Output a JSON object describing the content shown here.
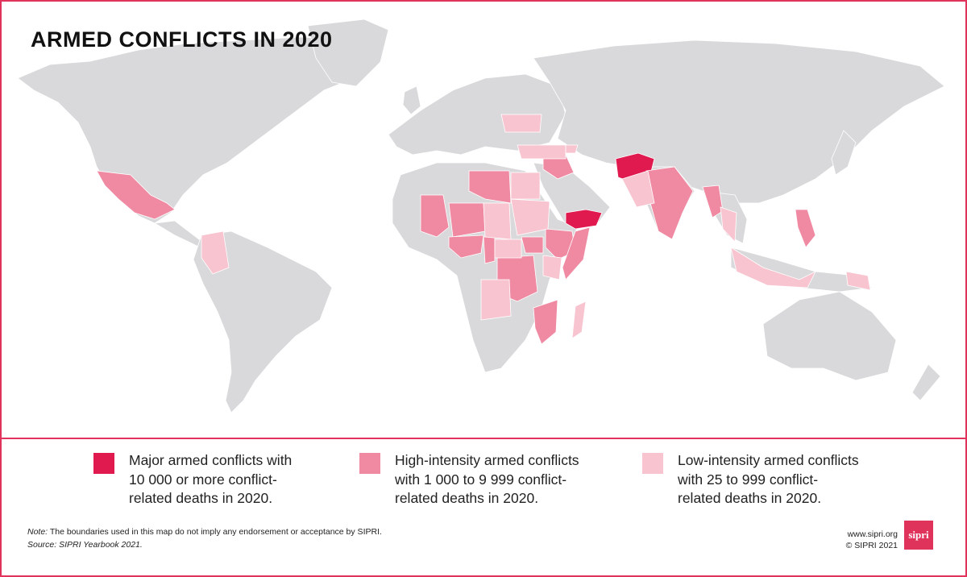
{
  "title": "ARMED CONFLICTS IN 2020",
  "colors": {
    "border": "#e0335b",
    "land": "#d9d9dc",
    "major": "#e0194f",
    "high": "#f08aa3",
    "low": "#f8c4d0"
  },
  "legend": [
    {
      "category": "major",
      "text": "Major armed conflicts with\n10 000 or more conflict-\nrelated deaths in 2020."
    },
    {
      "category": "high",
      "text": "High-intensity armed conflicts\nwith 1 000 to 9 999 conflict-\nrelated deaths in 2020."
    },
    {
      "category": "low",
      "text": "Low-intensity armed conflicts\nwith 25 to 999 conflict-\nrelated deaths in 2020."
    }
  ],
  "note": {
    "label": "Note:",
    "text": " The boundaries used in this map do not imply any endorsement or acceptance by SIPRI.",
    "source": "Source: SIPRI Yearbook 2021."
  },
  "credits": {
    "url": "www.sipri.org",
    "copyright": "© SIPRI 2021"
  },
  "logo_text": "sipri",
  "conflicts": {
    "major": [
      "Afghanistan",
      "Yemen"
    ],
    "high": [
      "Mexico",
      "Libya",
      "Mali",
      "Burkina Faso",
      "Niger",
      "Nigeria",
      "Cameroon",
      "Ethiopia",
      "Somalia",
      "South Sudan",
      "DR Congo",
      "Mozambique",
      "Syria",
      "Iraq",
      "India",
      "Myanmar",
      "Philippines"
    ],
    "low": [
      "Colombia",
      "Ukraine",
      "Turkey",
      "Azerbaijan",
      "Armenia",
      "Egypt",
      "Chad",
      "Sudan",
      "CAR",
      "Angola",
      "Kenya",
      "Uganda",
      "Pakistan",
      "Thailand",
      "Indonesia",
      "Papua New Guinea",
      "Madagascar"
    ]
  }
}
